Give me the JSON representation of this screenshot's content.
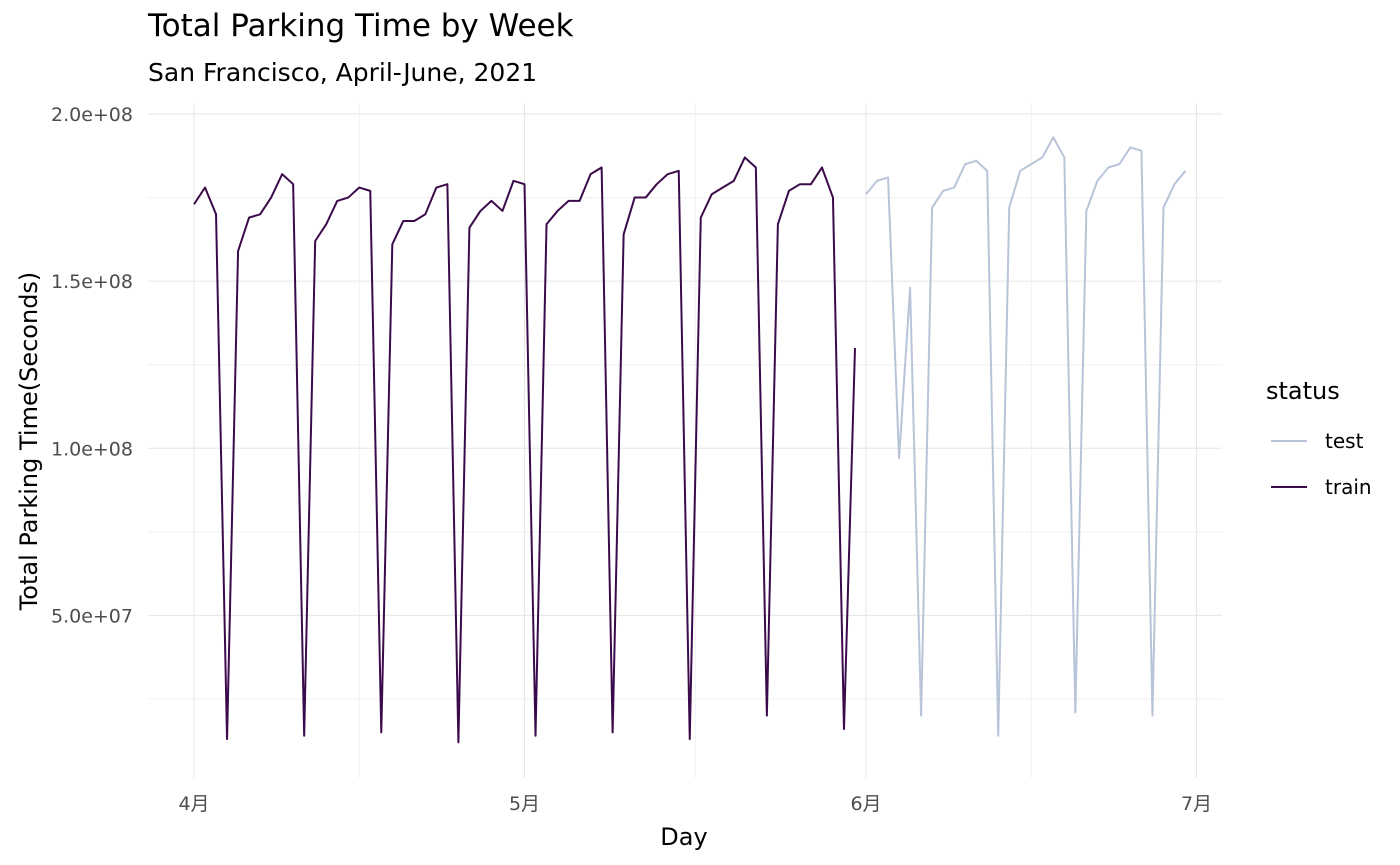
{
  "chart_data": {
    "type": "line",
    "title": "Total Parking Time by Week",
    "subtitle": "San Francisco, April-June, 2021",
    "xlabel": "Day",
    "ylabel": "Total Parking Time(Seconds)",
    "x_ticks": [
      {
        "date": "2021-04-01",
        "label": "4月"
      },
      {
        "date": "2021-05-01",
        "label": "5月"
      },
      {
        "date": "2021-06-01",
        "label": "6月"
      },
      {
        "date": "2021-07-01",
        "label": "7月"
      }
    ],
    "y_ticks": [
      {
        "value": 50000000,
        "label": "5.0e+07"
      },
      {
        "value": 100000000,
        "label": "1.0e+08"
      },
      {
        "value": 150000000,
        "label": "1.5e+08"
      },
      {
        "value": 200000000,
        "label": "2.0e+08"
      }
    ],
    "xlim": [
      "2021-03-27",
      "2021-07-05"
    ],
    "ylim": [
      0,
      200000000
    ],
    "grid": true,
    "legend_title": "status",
    "legend_position": "right",
    "series": [
      {
        "name": "test",
        "color": "#b8c4d8",
        "start_date": "2021-06-01",
        "values": [
          176,
          180,
          181,
          97,
          148,
          20,
          172,
          177,
          178,
          185,
          186,
          183,
          14,
          172,
          183,
          185,
          187,
          193,
          187,
          21,
          171,
          180,
          184,
          185,
          190,
          189,
          20,
          172,
          179,
          183
        ]
      },
      {
        "name": "train",
        "color": "#3b0a4a",
        "start_date": "2021-04-01",
        "values": [
          173,
          178,
          170,
          13,
          159,
          169,
          170,
          175,
          182,
          179,
          14,
          162,
          167,
          174,
          175,
          178,
          177,
          15,
          161,
          168,
          168,
          170,
          178,
          179,
          12,
          166,
          171,
          174,
          171,
          180,
          179,
          14,
          167,
          171,
          174,
          174,
          182,
          184,
          15,
          164,
          175,
          175,
          179,
          182,
          183,
          13,
          169,
          176,
          178,
          180,
          187,
          184,
          20,
          167,
          177,
          179,
          179,
          184,
          175,
          16,
          130
        ]
      }
    ],
    "value_unit_multiplier": 1000000
  }
}
